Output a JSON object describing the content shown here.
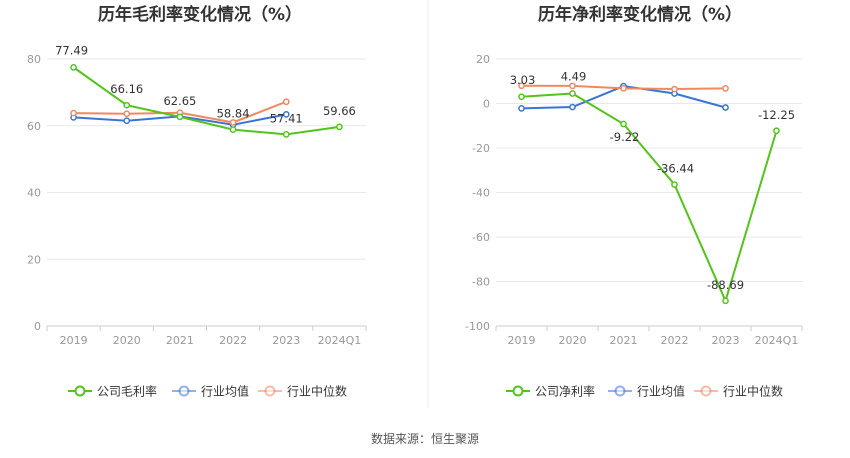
{
  "source_text": "数据来源：恒生聚源",
  "chart_data": [
    {
      "type": "line",
      "title": "历年毛利率变化情况（%）",
      "categories": [
        "2019",
        "2020",
        "2021",
        "2022",
        "2023",
        "2024Q1"
      ],
      "ylim": [
        0,
        80
      ],
      "yticks": [
        0,
        20,
        40,
        60,
        80
      ],
      "series": [
        {
          "name": "公司毛利率",
          "color": "#52c41a",
          "values": [
            77.49,
            66.16,
            62.65,
            58.84,
            57.41,
            59.66
          ],
          "labels": [
            "77.49",
            "66.16",
            "62.65",
            "58.84",
            "57.41",
            "59.66"
          ]
        },
        {
          "name": "行业均值",
          "color": "#3a75d4",
          "values": [
            62.5,
            61.5,
            62.8,
            60.3,
            63.4,
            null
          ]
        },
        {
          "name": "行业中位数",
          "color": "#f08860",
          "values": [
            63.8,
            63.6,
            63.9,
            61.0,
            67.2,
            null
          ]
        }
      ],
      "legend_position": "bottom"
    },
    {
      "type": "line",
      "title": "历年净利率变化情况（%）",
      "categories": [
        "2019",
        "2020",
        "2021",
        "2022",
        "2023",
        "2024Q1"
      ],
      "ylim": [
        -100,
        20
      ],
      "yticks": [
        -100,
        -80,
        -60,
        -40,
        -20,
        0,
        20
      ],
      "series": [
        {
          "name": "公司净利率",
          "color": "#52c41a",
          "values": [
            3.03,
            4.49,
            -9.22,
            -36.44,
            -88.69,
            -12.25
          ],
          "labels": [
            "3.03",
            "4.49",
            "-9.22",
            "-36.44",
            "-88.69",
            "-12.25"
          ]
        },
        {
          "name": "行业均值",
          "color": "#3a75d4",
          "values": [
            -2.2,
            -1.6,
            7.8,
            4.5,
            -1.8,
            null
          ]
        },
        {
          "name": "行业中位数",
          "color": "#f08860",
          "values": [
            8.0,
            7.9,
            6.8,
            6.5,
            6.8,
            null
          ]
        }
      ],
      "legend_position": "bottom"
    }
  ]
}
